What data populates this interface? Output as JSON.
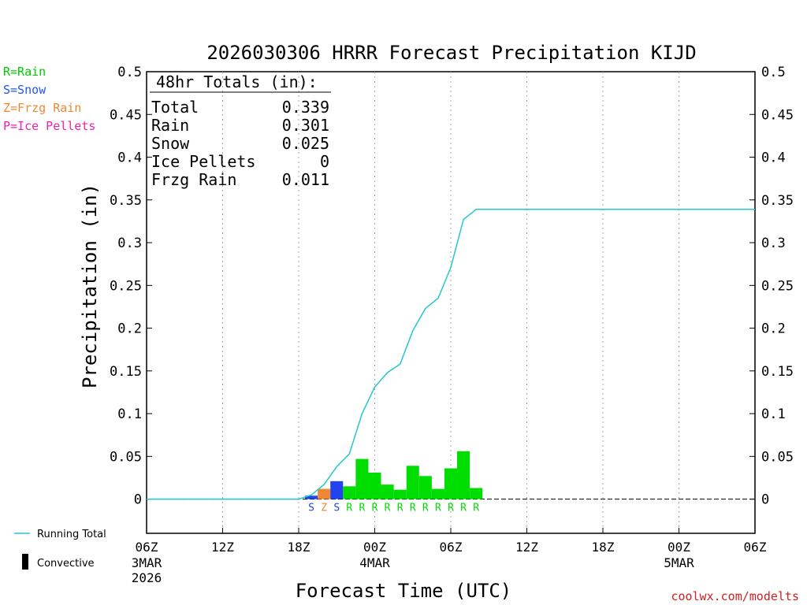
{
  "chart_data": {
    "type": "bar",
    "title": "2026030306 HRRR Forecast Precipitation KIJD",
    "xlabel": "Forecast Time (UTC)",
    "ylabel": "Precipitation (in)",
    "ylim": [
      -0.04,
      0.5
    ],
    "y_ticks": [
      "0",
      "0.05",
      "0.1",
      "0.15",
      "0.2",
      "0.25",
      "0.3",
      "0.35",
      "0.4",
      "0.45",
      "0.5"
    ],
    "x_range_hours": [
      0,
      48
    ],
    "x_ticks": [
      {
        "hour": 0,
        "label": "06Z",
        "date": "3MAR",
        "year": "2026"
      },
      {
        "hour": 6,
        "label": "12Z",
        "date": "",
        "year": ""
      },
      {
        "hour": 12,
        "label": "18Z",
        "date": "",
        "year": ""
      },
      {
        "hour": 18,
        "label": "00Z",
        "date": "4MAR",
        "year": ""
      },
      {
        "hour": 24,
        "label": "06Z",
        "date": "",
        "year": ""
      },
      {
        "hour": 30,
        "label": "12Z",
        "date": "",
        "year": ""
      },
      {
        "hour": 36,
        "label": "18Z",
        "date": "",
        "year": ""
      },
      {
        "hour": 42,
        "label": "00Z",
        "date": "5MAR",
        "year": ""
      },
      {
        "hour": 48,
        "label": "06Z",
        "date": "",
        "year": ""
      }
    ],
    "grid": "vertical-dotted",
    "type_legend": [
      {
        "text": "R=Rain",
        "color": "#00cc00"
      },
      {
        "text": "S=Snow",
        "color": "#2255ee"
      },
      {
        "text": "Z=Frzg Rain",
        "color": "#ee8833"
      },
      {
        "text": "P=Ice Pellets",
        "color": "#ee22aa"
      }
    ],
    "series_legend": [
      {
        "name": "Running Total",
        "color": "#22c8cc"
      },
      {
        "name": "Convective",
        "color": "#000000"
      }
    ],
    "totals": {
      "heading": "48hr Totals (in):",
      "rows": [
        {
          "label": "Total",
          "value": "0.339"
        },
        {
          "label": "Rain",
          "value": "0.301"
        },
        {
          "label": "Snow",
          "value": "0.025"
        },
        {
          "label": "Ice Pellets",
          "value": "0"
        },
        {
          "label": "Frzg Rain",
          "value": "0.011"
        }
      ]
    },
    "precip_type_colors": {
      "R": "#00dd00",
      "S": "#2244ee",
      "Z": "#ee8833",
      "P": "#ee22aa"
    },
    "hourly_bars": [
      {
        "hour": 13,
        "value": 0.004,
        "ptype": "S"
      },
      {
        "hour": 14,
        "value": 0.012,
        "ptype": "Z"
      },
      {
        "hour": 15,
        "value": 0.021,
        "ptype": "S"
      },
      {
        "hour": 16,
        "value": 0.015,
        "ptype": "R"
      },
      {
        "hour": 17,
        "value": 0.047,
        "ptype": "R"
      },
      {
        "hour": 18,
        "value": 0.031,
        "ptype": "R"
      },
      {
        "hour": 19,
        "value": 0.017,
        "ptype": "R"
      },
      {
        "hour": 20,
        "value": 0.011,
        "ptype": "R"
      },
      {
        "hour": 21,
        "value": 0.039,
        "ptype": "R"
      },
      {
        "hour": 22,
        "value": 0.027,
        "ptype": "R"
      },
      {
        "hour": 23,
        "value": 0.012,
        "ptype": "R"
      },
      {
        "hour": 24,
        "value": 0.036,
        "ptype": "R"
      },
      {
        "hour": 25,
        "value": 0.056,
        "ptype": "R"
      },
      {
        "hour": 26,
        "value": 0.013,
        "ptype": "R"
      }
    ],
    "running_total": {
      "hours": [
        0,
        12,
        13,
        14,
        15,
        16,
        17,
        18,
        19,
        20,
        21,
        22,
        23,
        24,
        25,
        26,
        48
      ],
      "values": [
        0,
        0,
        0.005,
        0.017,
        0.038,
        0.053,
        0.1,
        0.131,
        0.148,
        0.158,
        0.197,
        0.223,
        0.235,
        0.271,
        0.327,
        0.339,
        0.339
      ]
    },
    "source": "coolwx.com/modelts"
  }
}
